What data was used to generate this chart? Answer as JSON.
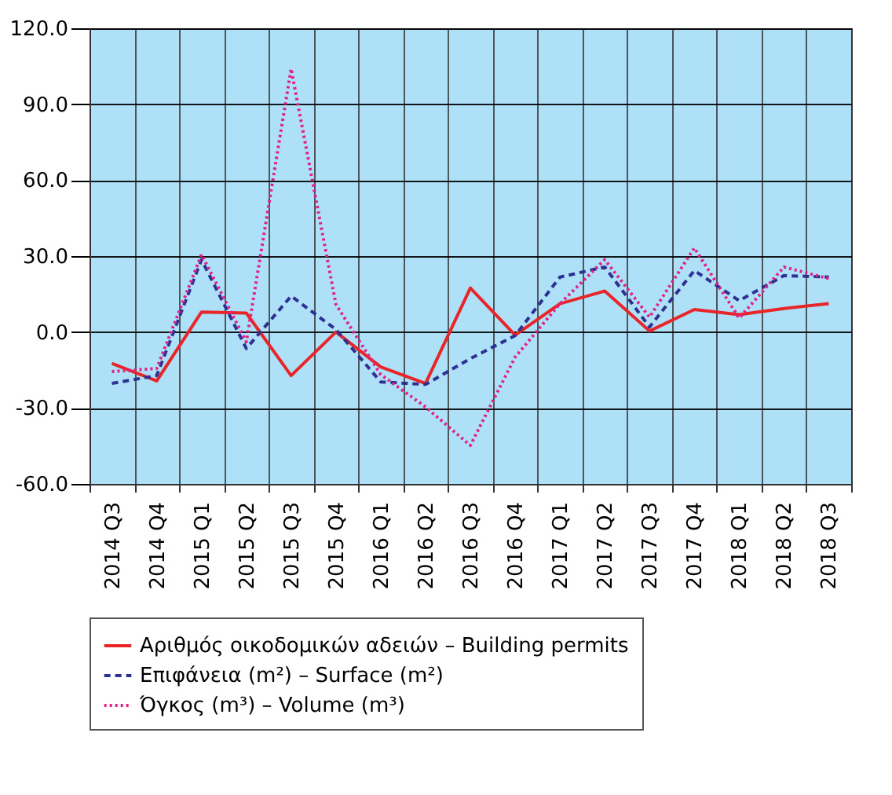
{
  "chart_data": {
    "type": "line",
    "categories": [
      "2014 Q3",
      "2014 Q4",
      "2015 Q1",
      "2015 Q2",
      "2015 Q3",
      "2015 Q4",
      "2016 Q1",
      "2016 Q2",
      "2016 Q3",
      "2016 Q4",
      "2017 Q1",
      "2017 Q2",
      "2017 Q3",
      "2017 Q4",
      "2018 Q1",
      "2018 Q2",
      "2018 Q3"
    ],
    "series": [
      {
        "name": "Αριθμός οικοδομικών αδειών – Building permits",
        "color": "#e8262a",
        "line_style": "solid",
        "values": [
          -12.4,
          -19.3,
          7.9,
          7.5,
          -17.2,
          0.0,
          -13.8,
          -20.3,
          17.4,
          -1.2,
          11.2,
          16.2,
          0.4,
          8.9,
          6.9,
          9.3,
          11.2
        ]
      },
      {
        "name": "Επιφάνεια (m²) – Surface (m²)",
        "color": "#2e3192",
        "line_style": "dashed",
        "values": [
          -20.3,
          -17.2,
          28.6,
          -6.5,
          14.2,
          1.0,
          -19.7,
          -20.7,
          -10.5,
          -1.4,
          21.7,
          25.7,
          2.0,
          24.3,
          12.4,
          22.3,
          21.7
        ]
      },
      {
        "name": "Όγκος (m³) – Volume (m³)",
        "color": "#e0218a",
        "line_style": "dotted",
        "values": [
          -15.6,
          -14.4,
          30.6,
          -3.9,
          104.0,
          10.9,
          -16.8,
          -29.6,
          -44.8,
          -9.9,
          11.2,
          28.6,
          5.9,
          33.2,
          5.5,
          25.7,
          21.1
        ]
      }
    ],
    "ylim": [
      -60,
      120
    ],
    "yticks": [
      {
        "value": -60,
        "label": "-60.0"
      },
      {
        "value": -30,
        "label": "-30.0"
      },
      {
        "value": 0,
        "label": "0.0"
      },
      {
        "value": 30,
        "label": "30.0"
      },
      {
        "value": 60,
        "label": "60.0"
      },
      {
        "value": 90,
        "label": "90.0"
      },
      {
        "value": 120,
        "label": "120.0"
      }
    ],
    "grid": true,
    "legend": "bottom",
    "marker": "none"
  }
}
